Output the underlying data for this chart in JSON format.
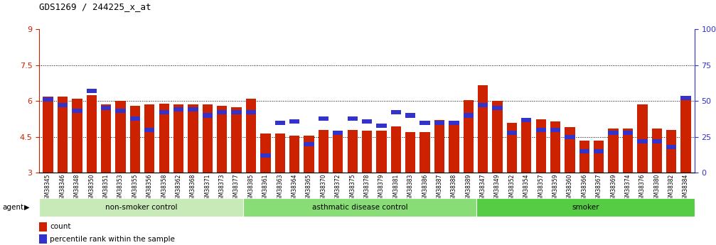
{
  "title": "GDS1269 / 244225_x_at",
  "ylim_left": [
    3,
    9
  ],
  "ylim_right": [
    0,
    100
  ],
  "yticks_left": [
    3,
    4.5,
    6,
    7.5,
    9
  ],
  "yticks_right": [
    0,
    25,
    50,
    75,
    100
  ],
  "ytick_labels_left": [
    "3",
    "4.5",
    "6",
    "7.5",
    "9"
  ],
  "ytick_labels_right": [
    "0",
    "25",
    "50",
    "75",
    "100%"
  ],
  "gridlines": [
    4.5,
    6,
    7.5
  ],
  "bar_color": "#CC2200",
  "percentile_color": "#3333CC",
  "bg_color": "#FFFFFF",
  "axis_label_color_left": "#CC2200",
  "axis_label_color_right": "#3333CC",
  "samples": [
    "GSM38345",
    "GSM38346",
    "GSM38348",
    "GSM38350",
    "GSM38351",
    "GSM38353",
    "GSM38355",
    "GSM38356",
    "GSM38358",
    "GSM38362",
    "GSM38368",
    "GSM38371",
    "GSM38373",
    "GSM38377",
    "GSM38385",
    "GSM38361",
    "GSM38363",
    "GSM38364",
    "GSM38365",
    "GSM38370",
    "GSM38372",
    "GSM38375",
    "GSM38378",
    "GSM38379",
    "GSM38381",
    "GSM38383",
    "GSM38386",
    "GSM38387",
    "GSM38388",
    "GSM38389",
    "GSM38347",
    "GSM38349",
    "GSM38352",
    "GSM38354",
    "GSM38357",
    "GSM38359",
    "GSM38360",
    "GSM38366",
    "GSM38367",
    "GSM38369",
    "GSM38374",
    "GSM38376",
    "GSM38380",
    "GSM38382",
    "GSM38384"
  ],
  "count_values": [
    6.2,
    6.2,
    6.1,
    6.25,
    5.85,
    6.0,
    5.8,
    5.85,
    5.9,
    5.85,
    5.85,
    5.85,
    5.8,
    5.75,
    6.1,
    4.65,
    4.65,
    4.55,
    4.55,
    4.8,
    4.75,
    4.8,
    4.75,
    4.75,
    4.95,
    4.7,
    4.7,
    5.2,
    5.05,
    6.05,
    6.65,
    6.0,
    5.1,
    5.25,
    5.25,
    5.15,
    4.9,
    4.35,
    4.35,
    4.85,
    4.85,
    5.85,
    4.85,
    4.8,
    6.2
  ],
  "percentile_values": [
    51,
    47,
    43,
    57,
    45,
    43,
    38,
    30,
    42,
    44,
    44,
    40,
    42,
    42,
    42,
    12,
    35,
    36,
    20,
    38,
    28,
    38,
    36,
    33,
    42,
    40,
    35,
    35,
    35,
    40,
    47,
    45,
    28,
    37,
    30,
    30,
    25,
    15,
    15,
    28,
    28,
    22,
    22,
    18,
    52
  ],
  "groups": [
    {
      "label": "non-smoker control",
      "start": 0,
      "end": 14,
      "color": "#C8EAB8"
    },
    {
      "label": "asthmatic disease control",
      "start": 14,
      "end": 30,
      "color": "#88DD77"
    },
    {
      "label": "smoker",
      "start": 30,
      "end": 45,
      "color": "#55CC44"
    }
  ]
}
